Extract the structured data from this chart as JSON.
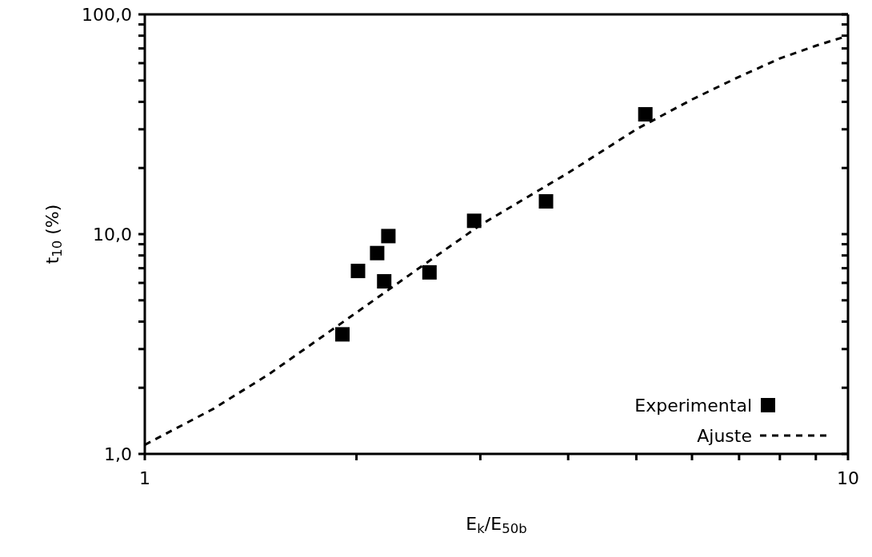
{
  "chart_data": {
    "type": "scatter",
    "xlabel": "E$_{k}$/E$_{50b}$",
    "ylabel": "t$_{10}$ (%)",
    "log": "xy",
    "xlim": [
      1,
      10
    ],
    "xticks": [
      1,
      {
        "value": 2,
        "label": null
      },
      {
        "value": 3,
        "label": null
      },
      {
        "value": 4,
        "label": null
      },
      {
        "value": 5,
        "label": null
      },
      {
        "value": 6,
        "label": null
      },
      {
        "value": 7,
        "label": null
      },
      {
        "value": 8,
        "label": null
      },
      {
        "value": 9,
        "label": null
      },
      10
    ],
    "ylim": [
      1,
      100
    ],
    "yticks": [
      {
        "value": 1,
        "label": "1,0"
      },
      {
        "value": 2,
        "label": null
      },
      {
        "value": 3,
        "label": null
      },
      {
        "value": 4,
        "label": null
      },
      {
        "value": 5,
        "label": null
      },
      {
        "value": 6,
        "label": null
      },
      {
        "value": 7,
        "label": null
      },
      {
        "value": 8,
        "label": null
      },
      {
        "value": 9,
        "label": null
      },
      {
        "value": 10,
        "label": "10,0"
      },
      {
        "value": 20,
        "label": null
      },
      {
        "value": 30,
        "label": null
      },
      {
        "value": 40,
        "label": null
      },
      {
        "value": 50,
        "label": null
      },
      {
        "value": 60,
        "label": null
      },
      {
        "value": 70,
        "label": null
      },
      {
        "value": 80,
        "label": null
      },
      {
        "value": 90,
        "label": null
      },
      {
        "value": 100,
        "label": "100,0"
      }
    ],
    "legend": "bottom right",
    "series": [
      {
        "name": "Experimental",
        "color": "#000000",
        "marker": "square",
        "x": [
          1.91,
          2.01,
          2.14,
          2.22,
          2.19,
          2.54,
          2.94,
          3.72,
          5.15
        ],
        "values": [
          3.5,
          6.8,
          8.2,
          9.8,
          6.1,
          6.7,
          11.5,
          14.1,
          35.1
        ]
      },
      {
        "name": "Ajuste",
        "type": "line",
        "color": "#000000",
        "line_style": "dashed",
        "marker": "none",
        "x": [
          1,
          1.25,
          1.5,
          2,
          2.5,
          3,
          4,
          5,
          6,
          7,
          8,
          9,
          10
        ],
        "values": [
          1.1,
          1.6,
          2.3,
          4.4,
          7.3,
          11,
          19,
          30,
          41,
          52,
          63,
          72,
          80
        ]
      }
    ]
  }
}
